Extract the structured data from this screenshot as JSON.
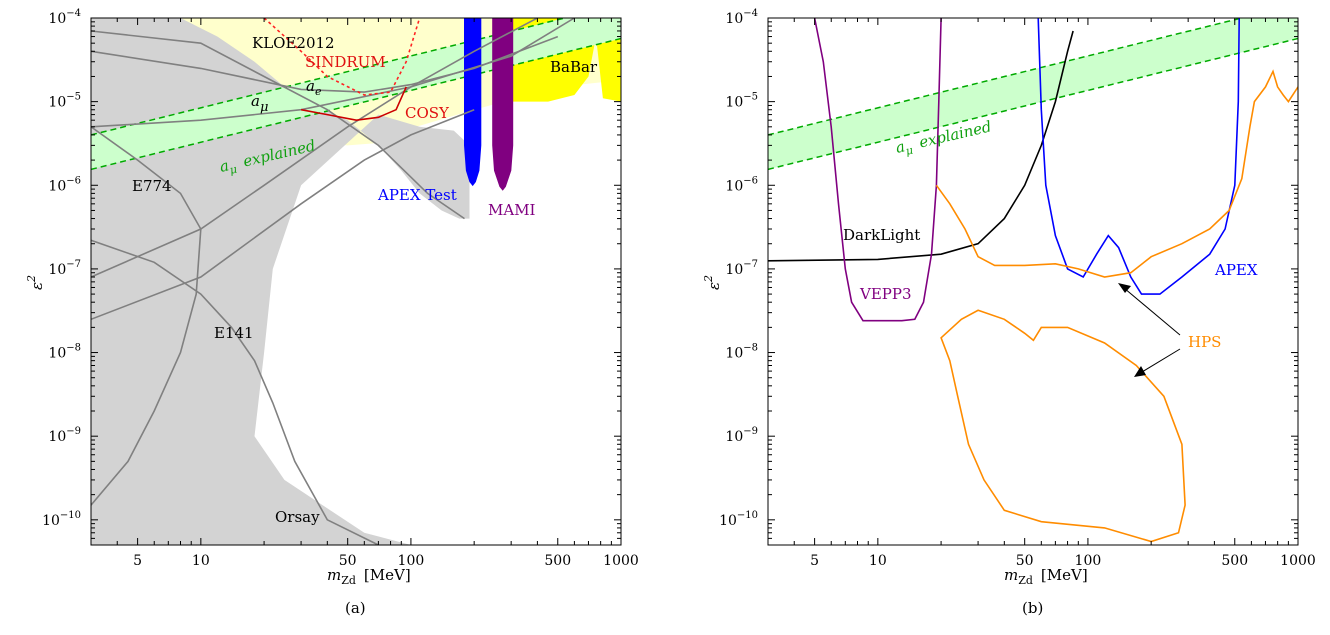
{
  "chart_data": [
    {
      "type": "line",
      "panel": "(a)",
      "caption": "(a)",
      "xlabel": "m_Zd [MeV]",
      "ylabel": "ε^2",
      "xscale": "log",
      "yscale": "log",
      "xlim": [
        3,
        1000
      ],
      "ylim": [
        5e-11,
        0.0001
      ],
      "xticks": [
        {
          "v": 5,
          "label": "5"
        },
        {
          "v": 10,
          "label": "10"
        },
        {
          "v": 50,
          "label": "50"
        },
        {
          "v": 100,
          "label": "100"
        },
        {
          "v": 500,
          "label": "500"
        },
        {
          "v": 1000,
          "label": "1000"
        }
      ],
      "yticks": [
        {
          "e": -4
        },
        {
          "e": -5
        },
        {
          "e": -6
        },
        {
          "e": -7
        },
        {
          "e": -8
        },
        {
          "e": -9
        },
        {
          "e": -10
        }
      ],
      "series": [
        {
          "name": "KLOE2012",
          "color": "#ffffcc",
          "kind": "region",
          "points": [
            [
              3,
              0.0001
            ],
            [
              1000,
              0.0001
            ],
            [
              1000,
              1.8e-05
            ],
            [
              500,
              1.5e-05
            ],
            [
              200,
              8e-06
            ],
            [
              100,
              4.8e-06
            ],
            [
              70,
              3.2e-06
            ],
            [
              50,
              3e-06
            ],
            [
              30,
              3.2e-06
            ],
            [
              20,
              3.6e-06
            ],
            [
              10,
              4.2e-06
            ],
            [
              3,
              5e-06
            ]
          ]
        },
        {
          "name": "BaBar",
          "color": "#ffff00",
          "kind": "region",
          "points": [
            [
              300,
              0.0001
            ],
            [
              1000,
              0.0001
            ],
            [
              1000,
              1e-05
            ],
            [
              820,
              1.1e-05
            ],
            [
              760,
              6e-05
            ],
            [
              700,
              2e-05
            ],
            [
              600,
              1.2e-05
            ],
            [
              450,
              1e-05
            ],
            [
              300,
              1e-05
            ]
          ]
        },
        {
          "name": "Orsay",
          "color": "#d3d3d3",
          "kind": "region",
          "points": [
            [
              3,
              0.0001
            ],
            [
              8,
              0.0001
            ],
            [
              12,
              6e-05
            ],
            [
              18,
              3e-05
            ],
            [
              25,
              1.5e-05
            ],
            [
              35,
              9e-06
            ],
            [
              50,
              6e-06
            ],
            [
              70,
              3e-06
            ],
            [
              90,
              1.5e-06
            ],
            [
              110,
              8e-07
            ],
            [
              140,
              5e-07
            ],
            [
              170,
              4e-07
            ],
            [
              190,
              4e-07
            ],
            [
              190,
              3e-06
            ],
            [
              160,
              4.5e-06
            ],
            [
              110,
              5e-06
            ],
            [
              70,
              7e-06
            ],
            [
              30,
              1e-06
            ],
            [
              22,
              1e-07
            ],
            [
              20,
              1e-08
            ],
            [
              18,
              1e-09
            ],
            [
              25,
              3e-10
            ],
            [
              60,
              7e-11
            ],
            [
              100,
              5e-11
            ],
            [
              3,
              5e-11
            ]
          ]
        },
        {
          "name": "E141",
          "color": "#808080",
          "kind": "line",
          "points": [
            [
              3,
              2.2e-07
            ],
            [
              6,
              1.2e-07
            ],
            [
              10,
              5e-08
            ],
            [
              14,
              2e-08
            ],
            [
              18,
              8e-09
            ],
            [
              22,
              2.5e-09
            ],
            [
              28,
              5e-10
            ],
            [
              40,
              1e-10
            ],
            [
              70,
              5e-11
            ]
          ]
        },
        {
          "name": "E774",
          "color": "#808080",
          "kind": "line",
          "points": [
            [
              3,
              5e-06
            ],
            [
              5,
              2e-06
            ],
            [
              8,
              8e-07
            ],
            [
              10,
              3e-07
            ],
            [
              9.5,
              5e-08
            ],
            [
              8,
              1e-08
            ],
            [
              6,
              2e-09
            ],
            [
              4.5,
              5e-10
            ],
            [
              3,
              1.5e-10
            ]
          ]
        },
        {
          "name": "",
          "color": "#808080",
          "kind": "line",
          "points": [
            [
              3,
              2.5e-08
            ],
            [
              10,
              8e-08
            ],
            [
              30,
              6e-07
            ],
            [
              60,
              2e-06
            ],
            [
              100,
              4e-06
            ],
            [
              200,
              8e-06
            ]
          ]
        },
        {
          "name": "",
          "color": "#808080",
          "kind": "line",
          "points": [
            [
              3,
              8e-08
            ],
            [
              10,
              3e-07
            ],
            [
              20,
              1e-06
            ],
            [
              50,
              5e-06
            ],
            [
              100,
              1.5e-05
            ],
            [
              200,
              4e-05
            ],
            [
              400,
              0.0001
            ]
          ]
        },
        {
          "name": "a_μ",
          "color": "#808080",
          "kind": "line",
          "points": [
            [
              3,
              5e-06
            ],
            [
              10,
              6e-06
            ],
            [
              30,
              8e-06
            ],
            [
              100,
              1.5e-05
            ],
            [
              300,
              3.5e-05
            ],
            [
              600,
              0.0001
            ]
          ]
        },
        {
          "name": "",
          "color": "#808080",
          "kind": "line",
          "points": [
            [
              3,
              7e-05
            ],
            [
              10,
              5e-05
            ],
            [
              20,
              2e-05
            ],
            [
              40,
              8e-06
            ],
            [
              70,
              3e-06
            ],
            [
              120,
              8e-07
            ],
            [
              180,
              4e-07
            ]
          ]
        },
        {
          "name": "a_e",
          "color": "#808080",
          "kind": "line",
          "points": [
            [
              3,
              4e-05
            ],
            [
              10,
              2.5e-05
            ],
            [
              30,
              1.4e-05
            ],
            [
              60,
              1.3e-05
            ],
            [
              100,
              1.6e-05
            ],
            [
              200,
              2.5e-05
            ],
            [
              500,
              6e-05
            ]
          ]
        },
        {
          "name": "SINDRUM",
          "color": "#ff2222",
          "kind": "dashed",
          "points": [
            [
              20,
              0.0001
            ],
            [
              30,
              4e-05
            ],
            [
              40,
              2e-05
            ],
            [
              60,
              1.2e-05
            ],
            [
              80,
              1.3e-05
            ],
            [
              95,
              3e-05
            ],
            [
              110,
              0.0001
            ]
          ]
        },
        {
          "name": "COSY",
          "color": "#cc0000",
          "kind": "line",
          "points": [
            [
              30,
              8e-06
            ],
            [
              40,
              7e-06
            ],
            [
              55,
              6e-06
            ],
            [
              70,
              6.5e-06
            ],
            [
              85,
              8e-06
            ],
            [
              95,
              1.5e-05
            ]
          ]
        },
        {
          "name": "APEX Test",
          "color": "#0000ff",
          "kind": "region"
        },
        {
          "name": "MAMI",
          "color": "#800080",
          "kind": "region"
        },
        {
          "name": "a_μ explained",
          "color": "#00a000",
          "kind": "band"
        }
      ]
    },
    {
      "type": "line",
      "panel": "(b)",
      "caption": "(b)",
      "xlabel": "m_Zd [MeV]",
      "ylabel": "ε^2",
      "xscale": "log",
      "yscale": "log",
      "xlim": [
        3,
        1000
      ],
      "ylim": [
        5e-11,
        0.0001
      ],
      "xticks": [
        {
          "v": 5,
          "label": "5"
        },
        {
          "v": 10,
          "label": "10"
        },
        {
          "v": 50,
          "label": "50"
        },
        {
          "v": 100,
          "label": "100"
        },
        {
          "v": 500,
          "label": "500"
        },
        {
          "v": 1000,
          "label": "1000"
        }
      ],
      "yticks": [
        {
          "e": -4
        },
        {
          "e": -5
        },
        {
          "e": -6
        },
        {
          "e": -7
        },
        {
          "e": -8
        },
        {
          "e": -9
        },
        {
          "e": -10
        }
      ],
      "series": [
        {
          "name": "a_μ explained",
          "color": "#00a000",
          "kind": "band"
        },
        {
          "name": "DarkLight",
          "color": "#000000",
          "kind": "line",
          "points": [
            [
              3,
              1.25e-07
            ],
            [
              10,
              1.3e-07
            ],
            [
              20,
              1.5e-07
            ],
            [
              30,
              2e-07
            ],
            [
              40,
              4e-07
            ],
            [
              50,
              1e-06
            ],
            [
              60,
              3e-06
            ],
            [
              70,
              1e-05
            ],
            [
              80,
              4e-05
            ],
            [
              85,
              7e-05
            ]
          ]
        },
        {
          "name": "VEPP3",
          "color": "#800080",
          "kind": "line",
          "points": [
            [
              5,
              0.0001
            ],
            [
              5.5,
              3e-05
            ],
            [
              6,
              5e-06
            ],
            [
              6.5,
              6e-07
            ],
            [
              7,
              1e-07
            ],
            [
              7.5,
              4e-08
            ],
            [
              8.5,
              2.4e-08
            ],
            [
              13,
              2.4e-08
            ],
            [
              15,
              2.5e-08
            ],
            [
              16.5,
              4e-08
            ],
            [
              18,
              1.5e-07
            ],
            [
              19,
              1e-06
            ],
            [
              19.5,
              1e-05
            ],
            [
              20,
              0.0001
            ]
          ]
        },
        {
          "name": "APEX",
          "color": "#0000ff",
          "kind": "line",
          "points": [
            [
              58,
              0.0001
            ],
            [
              60,
              8e-06
            ],
            [
              63,
              1e-06
            ],
            [
              70,
              2.5e-07
            ],
            [
              80,
              1e-07
            ],
            [
              95,
              8e-08
            ],
            [
              110,
              1.5e-07
            ],
            [
              125,
              2.5e-07
            ],
            [
              140,
              1.8e-07
            ],
            [
              160,
              8e-08
            ],
            [
              180,
              5e-08
            ],
            [
              220,
              5e-08
            ],
            [
              280,
              8e-08
            ],
            [
              380,
              1.5e-07
            ],
            [
              450,
              3e-07
            ],
            [
              500,
              1e-06
            ],
            [
              520,
              1e-05
            ],
            [
              525,
              0.0001
            ]
          ]
        },
        {
          "name": "HPS",
          "color": "#ff8c00",
          "kind": "line",
          "points": [
            [
              19,
              1e-06
            ],
            [
              22,
              6e-07
            ],
            [
              26,
              3e-07
            ],
            [
              30,
              1.4e-07
            ],
            [
              36,
              1.1e-07
            ],
            [
              50,
              1.1e-07
            ],
            [
              70,
              1.15e-07
            ],
            [
              90,
              1e-07
            ],
            [
              120,
              8e-08
            ],
            [
              160,
              9e-08
            ],
            [
              200,
              1.4e-07
            ],
            [
              280,
              2e-07
            ],
            [
              380,
              3e-07
            ],
            [
              470,
              5e-07
            ],
            [
              540,
              1.2e-06
            ],
            [
              590,
              5e-06
            ],
            [
              620,
              1e-05
            ],
            [
              700,
              1.5e-05
            ],
            [
              760,
              2.3e-05
            ],
            [
              800,
              1.5e-05
            ],
            [
              850,
              1.2e-05
            ],
            [
              900,
              1e-05
            ],
            [
              1000,
              1.5e-05
            ]
          ]
        },
        {
          "name": "HPS",
          "color": "#ff8c00",
          "kind": "closed",
          "points": [
            [
              20,
              1.5e-08
            ],
            [
              25,
              2.5e-08
            ],
            [
              30,
              3.2e-08
            ],
            [
              40,
              2.5e-08
            ],
            [
              50,
              1.7e-08
            ],
            [
              55,
              1.4e-08
            ],
            [
              60,
              2e-08
            ],
            [
              80,
              2e-08
            ],
            [
              120,
              1.3e-08
            ],
            [
              170,
              7e-09
            ],
            [
              230,
              3e-09
            ],
            [
              280,
              8e-10
            ],
            [
              290,
              1.5e-10
            ],
            [
              270,
              7e-11
            ],
            [
              200,
              5.5e-11
            ],
            [
              120,
              8e-11
            ],
            [
              60,
              9.5e-11
            ],
            [
              40,
              1.3e-10
            ],
            [
              32,
              3e-10
            ],
            [
              27,
              8e-10
            ],
            [
              24,
              3e-09
            ],
            [
              22,
              8e-09
            ],
            [
              20,
              1.5e-08
            ]
          ]
        }
      ]
    }
  ],
  "labels": {
    "kloe": "KLOE2012",
    "sindrum": "SINDRUM",
    "ae_base": "a",
    "ae_sub": "e",
    "amu_base": "a",
    "amu_sub": "μ",
    "cosy": "COSY",
    "babar": "BaBar",
    "apex_test": "APEX Test",
    "mami": "MAMI",
    "e774": "E774",
    "e141": "E141",
    "orsay": "Orsay",
    "explained_base": "a",
    "explained_sub": "μ",
    "explained_text": "explained",
    "darklight": "DarkLight",
    "vepp3": "VEPP3",
    "apex": "APEX",
    "hps": "HPS",
    "x_base": "m",
    "x_sub": "Zd",
    "x_unit": "[MeV]",
    "y_base": "ε",
    "y_sup": "2",
    "cap_a": "(a)",
    "cap_b": "(b)"
  },
  "colors": {
    "band": "#ccffcc",
    "band_line": "#00aa00",
    "gray_line": "#808080",
    "orsay_fill": "#d3d3d3",
    "kloe_fill": "#ffffcc",
    "babar_fill": "#ffff00",
    "apex_test": "#0000ff",
    "mami": "#800080",
    "sindrum": "#ff2222",
    "cosy": "#cc0000",
    "darklight": "#000000",
    "vepp3": "#800080",
    "apex": "#0000ff",
    "hps": "#ff8c00"
  }
}
